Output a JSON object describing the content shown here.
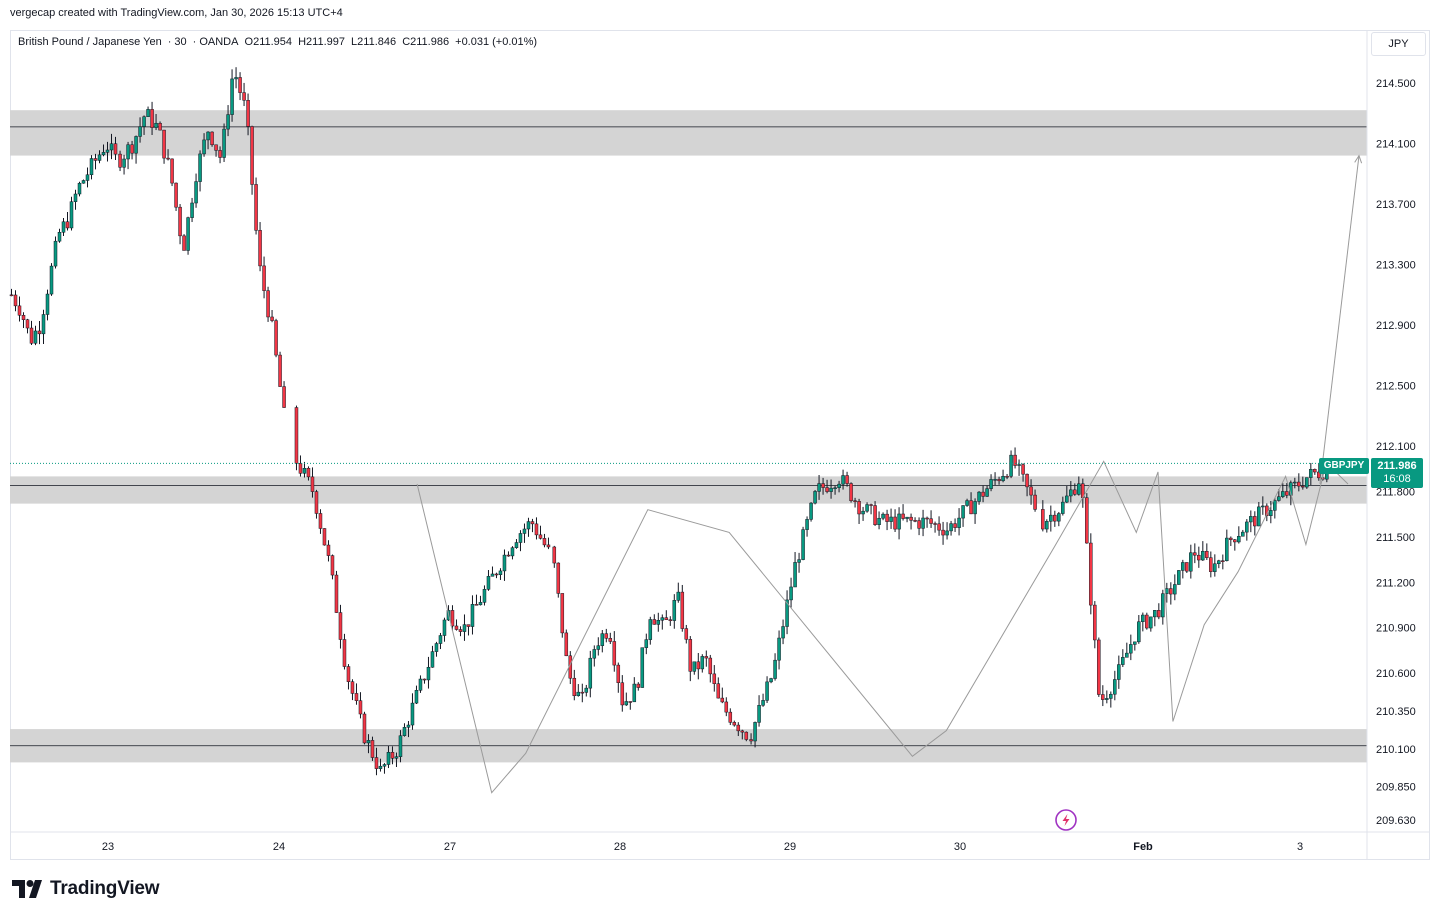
{
  "header": {
    "attribution": "vergecap created with TradingView.com, Jan 30, 2026 15:13 UTC+4"
  },
  "legend": {
    "symbol_name": "British Pound / Japanese Yen",
    "interval": "30",
    "exchange": "OANDA",
    "open": "O211.954",
    "high": "H211.997",
    "low": "L211.846",
    "close": "C211.986",
    "change": "+0.031 (+0.01%)"
  },
  "currency": "JPY",
  "last_price": {
    "symbol": "GBPJPY",
    "price": "211.986",
    "countdown": "16:08"
  },
  "footer": {
    "brand": "TradingView"
  },
  "colors": {
    "up": "#089981",
    "down": "#f23645",
    "zone_fill": "#d4d4d4",
    "line": "#131722",
    "drawing": "#9a9a9a"
  },
  "chart_data": {
    "type": "candlestick",
    "title": "",
    "xlabel": "",
    "ylabel": "",
    "ylim": [
      209.55,
      214.85
    ],
    "y_ticks": [
      "214.500",
      "214.100",
      "213.700",
      "213.300",
      "212.900",
      "212.500",
      "212.100",
      "211.800",
      "211.500",
      "211.200",
      "210.900",
      "210.600",
      "210.350",
      "210.100",
      "209.850",
      "209.630"
    ],
    "x_ticks": [
      "23",
      "24",
      "27",
      "28",
      "29",
      "30",
      "Feb",
      "3"
    ],
    "zones": [
      {
        "low": 214.02,
        "high": 214.32,
        "line": 214.21
      },
      {
        "low": 211.72,
        "high": 211.9,
        "line": 211.84
      },
      {
        "low": 210.01,
        "high": 210.23,
        "line": 210.12
      }
    ],
    "swing_path": [
      {
        "t": 0.3,
        "price": 211.85
      },
      {
        "t": 0.355,
        "price": 209.81
      },
      {
        "t": 0.38,
        "price": 210.07
      },
      {
        "t": 0.47,
        "price": 211.68
      },
      {
        "t": 0.53,
        "price": 211.53
      },
      {
        "t": 0.665,
        "price": 210.05
      },
      {
        "t": 0.69,
        "price": 210.22
      },
      {
        "t": 0.77,
        "price": 211.44
      },
      {
        "t": 0.806,
        "price": 212.0
      },
      {
        "t": 0.83,
        "price": 211.53
      },
      {
        "t": 0.846,
        "price": 211.93
      },
      {
        "t": 0.857,
        "price": 210.28
      },
      {
        "t": 0.88,
        "price": 210.92
      },
      {
        "t": 0.905,
        "price": 211.27
      },
      {
        "t": 0.94,
        "price": 211.9
      },
      {
        "t": 0.955,
        "price": 211.45
      },
      {
        "t": 0.97,
        "price": 211.99
      },
      {
        "t": 0.986,
        "price": 211.85
      }
    ],
    "projection_arrow": {
      "from": {
        "t": 0.986,
        "price": 211.85
      },
      "to": {
        "t": 1.0,
        "price": 214.02
      }
    },
    "series": [
      {
        "day": "22",
        "points": [
          213.1,
          213.0,
          212.8,
          212.9,
          213.2,
          213.5,
          213.6,
          213.8,
          213.9,
          214.0,
          214.1,
          214.0
        ]
      },
      {
        "day": "23",
        "points": [
          214.0,
          214.1,
          214.3,
          214.2,
          213.9,
          213.4,
          213.9,
          214.2,
          214.0,
          214.6,
          214.3,
          213.3,
          212.9,
          212.3
        ]
      },
      {
        "day": "24",
        "points": [
          212.0,
          211.8,
          211.3,
          210.6,
          210.2,
          209.95,
          210.1,
          210.4,
          210.7,
          211.0,
          210.9,
          211.1,
          211.3,
          211.5,
          211.6,
          211.4
        ]
      },
      {
        "day": "27",
        "points": [
          211.3,
          210.6,
          210.4,
          210.8,
          210.9,
          210.4,
          210.5,
          211.0,
          210.9,
          211.1,
          210.6,
          210.7,
          210.4,
          210.3,
          210.2
        ]
      },
      {
        "day": "28",
        "points": [
          210.2,
          210.6,
          211.3,
          211.8,
          211.9,
          211.7,
          211.6,
          211.6,
          211.6,
          211.55,
          211.7,
          211.85,
          212.0,
          211.7
        ]
      },
      {
        "day": "29",
        "points": [
          211.6,
          211.7,
          211.9,
          210.4,
          210.6,
          210.9,
          211.0,
          211.2,
          211.4,
          211.3,
          211.5,
          211.6,
          211.7,
          211.8,
          211.9,
          211.95
        ]
      }
    ]
  }
}
